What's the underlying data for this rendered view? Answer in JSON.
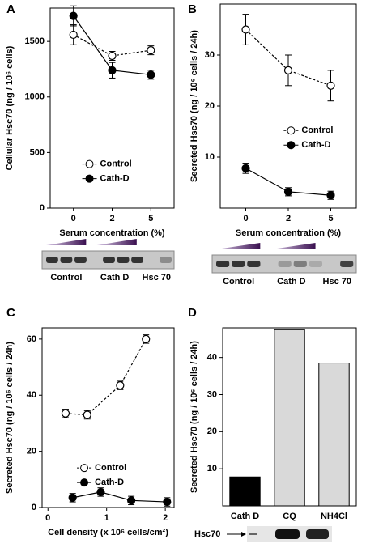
{
  "chart_data": [
    {
      "type": "line",
      "panel": "A",
      "y_label": "Cellular Hsc70 (ng / 10⁶ cells)",
      "x_label": "Serum concentration (%)",
      "categories": [
        "0",
        "2",
        "5"
      ],
      "ylim": [
        0,
        1800
      ],
      "yticks": [
        0,
        500,
        1000,
        1500
      ],
      "legend": "lower center",
      "series": [
        {
          "name": "Control",
          "color": "#000000",
          "marker": "open",
          "dashed": true,
          "values": [
            1560,
            1370,
            1420
          ],
          "errors": [
            90,
            40,
            40
          ]
        },
        {
          "name": "Cath-D",
          "color": "#000000",
          "marker": "filled",
          "dashed": false,
          "values": [
            1730,
            1240,
            1200
          ],
          "errors": [
            90,
            70,
            40
          ]
        }
      ],
      "blot_labels": [
        "Control",
        "Cath D",
        "Hsc 70"
      ]
    },
    {
      "type": "line",
      "panel": "B",
      "y_label": "Secreted Hsc70 (ng / 10⁶ cells / 24h)",
      "x_label": "Serum concentration (%)",
      "categories": [
        "0",
        "2",
        "5"
      ],
      "ylim": [
        0,
        40
      ],
      "yticks": [
        10,
        20,
        30
      ],
      "legend": "center right",
      "series": [
        {
          "name": "Control",
          "color": "#000000",
          "marker": "open",
          "dashed": true,
          "values": [
            35,
            27,
            24
          ],
          "errors": [
            3,
            3,
            3
          ]
        },
        {
          "name": "Cath-D",
          "color": "#000000",
          "marker": "filled",
          "dashed": false,
          "values": [
            7.8,
            3.2,
            2.5
          ],
          "errors": [
            1,
            0.8,
            0.8
          ]
        }
      ],
      "blot_labels": [
        "Control",
        "Cath D",
        "Hsc 70"
      ]
    },
    {
      "type": "scatter-line",
      "panel": "C",
      "y_label": "Secreted Hsc70 (ng / 10⁶ cells / 24h)",
      "x_label": "Cell density (x 10⁶ cells/cm²)",
      "xlim": [
        -0.1,
        2.15
      ],
      "xticks": [
        0,
        1,
        2
      ],
      "ylim": [
        0,
        64
      ],
      "yticks": [
        0,
        20,
        40,
        60
      ],
      "legend": "lower center",
      "series": [
        {
          "name": "Control",
          "color": "#000000",
          "marker": "open",
          "dashed": true,
          "x": [
            0.3,
            0.67,
            1.23,
            1.67
          ],
          "values": [
            33.5,
            33,
            43.5,
            60
          ],
          "errors": [
            1.5,
            1.5,
            1.5,
            1.5
          ]
        },
        {
          "name": "Cath-D",
          "color": "#000000",
          "marker": "filled",
          "dashed": false,
          "x": [
            0.42,
            0.9,
            1.42,
            2.03
          ],
          "values": [
            3.5,
            5.5,
            2.5,
            2
          ],
          "errors": [
            1.5,
            1.5,
            1.5,
            1.5
          ]
        }
      ]
    },
    {
      "type": "bar",
      "panel": "D",
      "y_label": "Secreted Hsc70 (ng / 10⁶ cells / 24h)",
      "categories": [
        "Cath D",
        "CQ",
        "NH4Cl"
      ],
      "values": [
        7.8,
        47.5,
        38.5
      ],
      "colors": [
        "#000000",
        "#d9d9d9",
        "#d9d9d9"
      ],
      "ylim": [
        0,
        48
      ],
      "yticks": [
        10,
        20,
        30,
        40
      ],
      "blot_label": "Hsc70"
    }
  ]
}
